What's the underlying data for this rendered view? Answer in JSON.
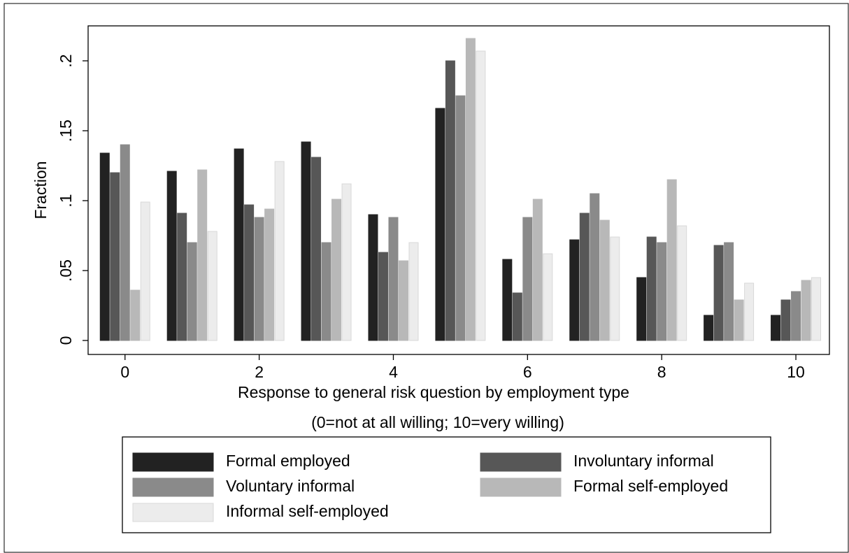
{
  "chart_data": {
    "type": "bar",
    "xlabel": "Response to general risk question by employment type",
    "xlabel_note": "(0=not at all willing; 10=very willing)",
    "ylabel": "Fraction",
    "x": [
      0,
      1,
      2,
      3,
      4,
      5,
      6,
      7,
      8,
      9,
      10
    ],
    "xlim": [
      -0.55,
      10.5
    ],
    "xticks": [
      0,
      2,
      4,
      6,
      8,
      10
    ],
    "ylim": [
      -0.01,
      0.225
    ],
    "yticks": [
      0,
      {
        "value": 0.05,
        "label": ".05"
      },
      {
        "value": 0.1,
        "label": ".1"
      },
      {
        "value": 0.15,
        "label": ".15"
      },
      {
        "value": 0.2,
        "label": ".2"
      }
    ],
    "series": [
      {
        "name": "Formal employed",
        "color": "#222222",
        "values": [
          0.134,
          0.121,
          0.137,
          0.142,
          0.09,
          0.166,
          0.058,
          0.072,
          0.045,
          0.018,
          0.018
        ]
      },
      {
        "name": "Involuntary informal",
        "color": "#575757",
        "values": [
          0.12,
          0.091,
          0.097,
          0.131,
          0.063,
          0.2,
          0.034,
          0.091,
          0.074,
          0.068,
          0.029
        ]
      },
      {
        "name": "Voluntary informal",
        "color": "#8a8a8a",
        "values": [
          0.14,
          0.07,
          0.088,
          0.07,
          0.088,
          0.175,
          0.088,
          0.105,
          0.07,
          0.07,
          0.035
        ]
      },
      {
        "name": "Formal self-employed",
        "color": "#b8b8b8",
        "values": [
          0.036,
          0.122,
          0.094,
          0.101,
          0.057,
          0.216,
          0.101,
          0.086,
          0.115,
          0.029,
          0.043
        ]
      },
      {
        "name": "Informal self-employed",
        "color": "#ececec",
        "values": [
          0.099,
          0.078,
          0.128,
          0.112,
          0.07,
          0.207,
          0.062,
          0.074,
          0.082,
          0.041,
          0.045
        ]
      }
    ]
  }
}
